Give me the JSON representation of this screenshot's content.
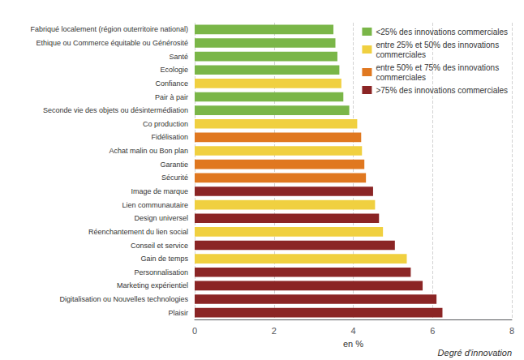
{
  "chart_data": {
    "type": "bar",
    "orientation": "horizontal",
    "categories": [
      "Fabriqué localement (région outerritoire national)",
      "Ethique ou Commerce équitable ou Générosité",
      "Santé",
      "Ecologie",
      "Confiance",
      "Pair à pair",
      "Seconde vie des objets ou désintermédiation",
      "Co production",
      "Fidélisation",
      "Achat malin ou Bon plan",
      "Garantie",
      "Sécurité",
      "Image de marque",
      "Lien communautaire",
      "Design universel",
      "Réenchantement du lien social",
      "Conseil et service",
      "Gain de temps",
      "Personnalisation",
      "Marketing expérientiel",
      "Digitalisation ou Nouvelles technologies",
      "Plaisir"
    ],
    "series": [
      {
        "name": "<25% des innovations commerciales",
        "color": "#7ab648",
        "values": [
          3.5,
          3.55,
          3.6,
          3.65,
          null,
          3.75,
          3.9,
          null,
          null,
          null,
          null,
          null,
          null,
          null,
          null,
          null,
          null,
          null,
          null,
          null,
          null,
          null
        ]
      },
      {
        "name": "entre 25% et 50% des innovations\ncommerciales",
        "color": "#f0d040",
        "values": [
          null,
          null,
          null,
          null,
          3.7,
          null,
          null,
          4.1,
          null,
          4.22,
          null,
          null,
          null,
          4.55,
          null,
          4.75,
          null,
          5.35,
          null,
          null,
          null,
          null
        ]
      },
      {
        "name": "entre 50% et 75% des innovations\ncommerciales",
        "color": "#e07820",
        "values": [
          null,
          null,
          null,
          null,
          null,
          null,
          null,
          null,
          4.2,
          null,
          4.28,
          4.32,
          null,
          null,
          null,
          null,
          null,
          null,
          null,
          null,
          null,
          null
        ]
      },
      {
        "name": ">75% des innovations commerciales",
        "color": "#8b2525",
        "values": [
          null,
          null,
          null,
          null,
          null,
          null,
          null,
          null,
          null,
          null,
          null,
          null,
          4.5,
          null,
          4.65,
          null,
          5.05,
          null,
          5.45,
          5.75,
          6.1,
          6.25
        ]
      }
    ],
    "xlabel": "en %",
    "xlim": [
      0,
      8
    ],
    "xticks": [
      0,
      2,
      4,
      6,
      8
    ],
    "annotation": "Degré d'innovation",
    "grid": true,
    "legend": "upper right"
  }
}
